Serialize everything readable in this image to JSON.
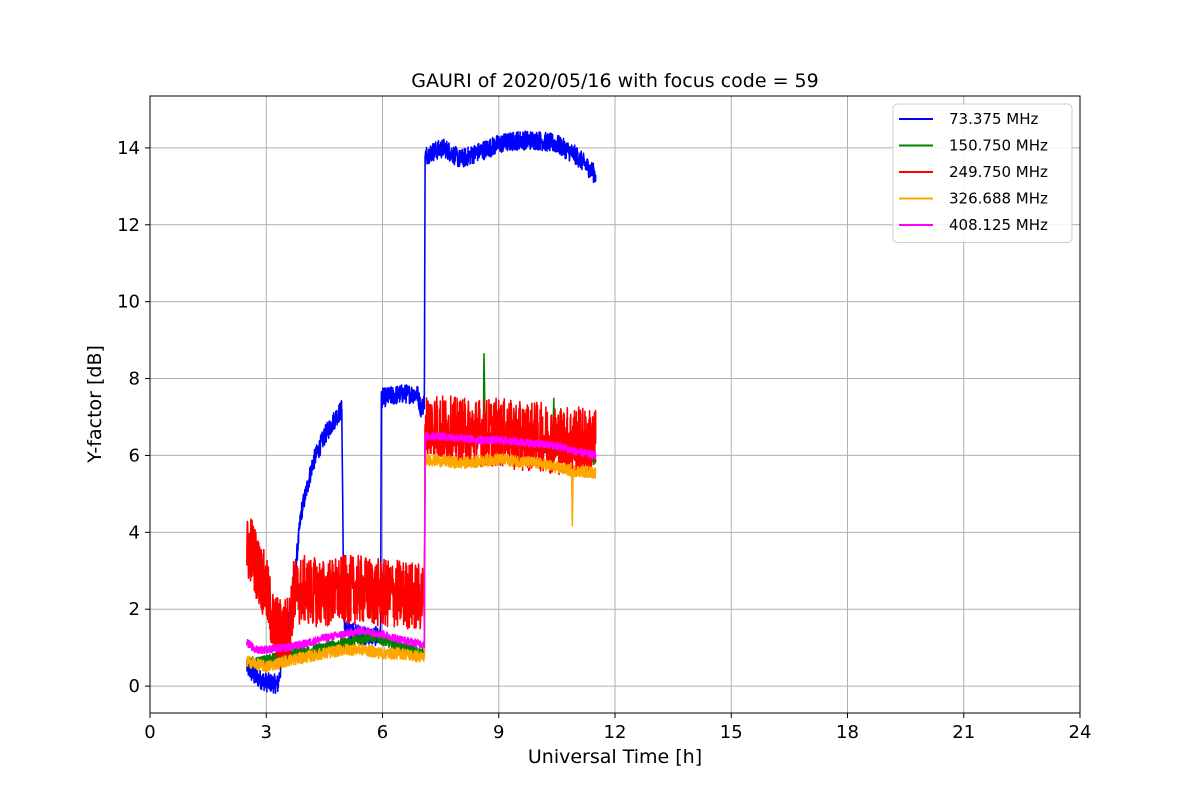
{
  "chart_data": {
    "type": "line",
    "title": "GAURI of 2020/05/16 with focus code = 59",
    "xlabel": "Universal Time [h]",
    "ylabel": "Y-factor [dB]",
    "xlim": [
      0,
      24
    ],
    "ylim": [
      -0.7,
      15.35
    ],
    "xticks": [
      0,
      3,
      6,
      9,
      12,
      15,
      18,
      21,
      24
    ],
    "yticks": [
      0,
      2,
      4,
      6,
      8,
      10,
      12,
      14
    ],
    "grid": true,
    "legend_position": "top-right",
    "series": [
      {
        "name": "  73.375 MHz",
        "color": "#0000ff",
        "noise": 0.25,
        "x": [
          2.5,
          2.7,
          3.0,
          3.3,
          3.5,
          3.7,
          3.9,
          4.2,
          4.5,
          4.8,
          4.95,
          5.0,
          5.02,
          5.5,
          5.95,
          5.97,
          6.0,
          6.5,
          6.9,
          7.0,
          7.08,
          7.1,
          7.3,
          7.6,
          8.0,
          8.5,
          9.0,
          9.5,
          10.0,
          10.5,
          11.0,
          11.5
        ],
        "y": [
          0.5,
          0.25,
          0.1,
          0.05,
          1.2,
          2.5,
          4.5,
          5.8,
          6.5,
          7.0,
          7.2,
          2.0,
          1.5,
          1.3,
          1.3,
          7.5,
          7.5,
          7.6,
          7.6,
          7.2,
          7.4,
          13.8,
          13.9,
          14.0,
          13.7,
          13.9,
          14.1,
          14.2,
          14.2,
          14.1,
          13.8,
          13.3
        ]
      },
      {
        "name": "150.750 MHz",
        "color": "#008000",
        "noise": 0.15,
        "x": [
          2.5,
          3.0,
          3.5,
          4.0,
          4.5,
          5.0,
          5.5,
          5.8,
          6.5,
          7.0,
          7.08,
          7.1,
          8.0,
          8.6,
          8.62,
          8.65,
          9.0,
          10.0,
          10.4,
          10.42,
          10.45,
          11.0,
          11.5
        ],
        "y": [
          0.6,
          0.65,
          0.8,
          0.9,
          1.0,
          1.1,
          1.25,
          1.3,
          1.0,
          0.85,
          0.85,
          6.3,
          6.4,
          6.5,
          8.6,
          6.5,
          6.4,
          6.2,
          6.2,
          7.4,
          6.2,
          6.0,
          5.9
        ]
      },
      {
        "name": "249.750 MHz",
        "color": "#ff0000",
        "noise": 0.9,
        "x": [
          2.5,
          2.6,
          2.8,
          3.0,
          3.2,
          3.4,
          3.6,
          3.7,
          4.0,
          4.5,
          5.0,
          5.5,
          6.0,
          6.5,
          7.0,
          7.08,
          7.1,
          7.5,
          8.0,
          8.5,
          9.0,
          9.5,
          10.0,
          10.5,
          11.0,
          11.5
        ],
        "y": [
          3.5,
          3.6,
          3.0,
          2.5,
          1.5,
          1.4,
          1.5,
          2.4,
          2.5,
          2.4,
          2.5,
          2.5,
          2.4,
          2.4,
          2.3,
          2.3,
          6.8,
          6.7,
          6.6,
          6.6,
          6.6,
          6.5,
          6.5,
          6.4,
          6.4,
          6.3
        ]
      },
      {
        "name": "326.688 MHz",
        "color": "#ffa500",
        "noise": 0.15,
        "x": [
          2.5,
          3.0,
          3.5,
          4.0,
          4.5,
          5.0,
          5.5,
          6.0,
          6.5,
          7.0,
          7.08,
          7.1,
          8.0,
          9.0,
          10.0,
          10.88,
          10.9,
          10.92,
          11.0,
          11.5
        ],
        "y": [
          0.65,
          0.5,
          0.65,
          0.75,
          0.85,
          0.95,
          0.95,
          0.85,
          0.85,
          0.75,
          0.75,
          5.9,
          5.8,
          5.9,
          5.8,
          5.6,
          4.3,
          5.6,
          5.6,
          5.55
        ]
      },
      {
        "name": "408.125 MHz",
        "color": "#ff00ff",
        "noise": 0.1,
        "x": [
          2.5,
          2.7,
          3.0,
          3.5,
          4.0,
          4.5,
          5.0,
          5.5,
          6.0,
          6.5,
          7.0,
          7.08,
          7.1,
          7.5,
          8.0,
          8.5,
          9.0,
          9.5,
          10.0,
          10.5,
          11.0,
          11.5
        ],
        "y": [
          1.15,
          0.95,
          0.95,
          1.0,
          1.1,
          1.25,
          1.35,
          1.45,
          1.35,
          1.2,
          1.1,
          1.1,
          6.5,
          6.5,
          6.45,
          6.4,
          6.4,
          6.35,
          6.3,
          6.25,
          6.1,
          6.0
        ]
      }
    ]
  }
}
